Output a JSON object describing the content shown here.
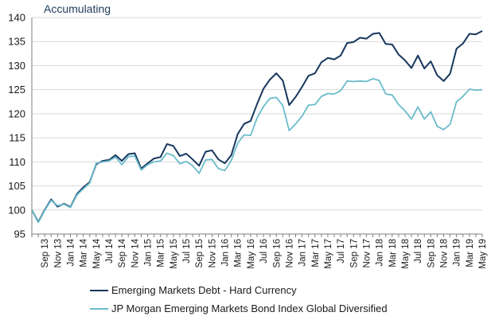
{
  "chart_data": {
    "type": "line",
    "title": "Accumulating",
    "xlabel": "",
    "ylabel": "",
    "ylim": [
      95,
      140
    ],
    "yticks": [
      95,
      100,
      105,
      110,
      115,
      120,
      125,
      130,
      135,
      140
    ],
    "grid": true,
    "legend_position": "bottom",
    "x": [
      "Jul 13",
      "Aug 13",
      "Sep 13",
      "Oct 13",
      "Nov 13",
      "Dec 13",
      "Jan 14",
      "Feb 14",
      "Mar 14",
      "Apr 14",
      "May 14",
      "Jun 14",
      "Jul 14",
      "Aug 14",
      "Sep 14",
      "Oct 14",
      "Nov 14",
      "Dec 14",
      "Jan 15",
      "Feb 15",
      "Mar 15",
      "Apr 15",
      "May 15",
      "Jun 15",
      "Jul 15",
      "Aug 15",
      "Sep 15",
      "Oct 15",
      "Nov 15",
      "Dec 15",
      "Jan 16",
      "Feb 16",
      "Mar 16",
      "Apr 16",
      "May 16",
      "Jun 16",
      "Jul 16",
      "Aug 16",
      "Sep 16",
      "Oct 16",
      "Nov 16",
      "Dec 16",
      "Jan 17",
      "Feb 17",
      "Mar 17",
      "Apr 17",
      "May 17",
      "Jun 17",
      "Jul 17",
      "Aug 17",
      "Sep 17",
      "Oct 17",
      "Nov 17",
      "Dec 17",
      "Jan 18",
      "Feb 18",
      "Mar 18",
      "Apr 18",
      "May 18",
      "Jun 18",
      "Jul 18",
      "Aug 18",
      "Sep 18",
      "Oct 18",
      "Nov 18",
      "Dec 18",
      "Jan 19",
      "Feb 19",
      "Mar 19",
      "Apr 19",
      "May 19"
    ],
    "x_tick_labels": [
      "Sep 13",
      "Nov 13",
      "Jan 14",
      "Mar 14",
      "May 14",
      "Jul 14",
      "Sep 14",
      "Nov 14",
      "Jan 15",
      "Mar 15",
      "May 15",
      "Jul 15",
      "Sep 15",
      "Nov 15",
      "Jan 16",
      "Mar 16",
      "May 16",
      "Jul 16",
      "Sep 16",
      "Nov 16",
      "Jan 17",
      "Mar 17",
      "May 17",
      "Jul 17",
      "Sep 17",
      "Nov 17",
      "Jan 18",
      "Mar 18",
      "May 18",
      "Jul 18",
      "Sep 18",
      "Nov 18",
      "Jan 19",
      "Mar 19",
      "May 19"
    ],
    "series": [
      {
        "name": "Emerging Markets Debt - Hard Currency",
        "color": "#17375e",
        "values": [
          100.0,
          97.5,
          100.0,
          102.2,
          100.7,
          101.3,
          100.6,
          103.3,
          104.7,
          105.8,
          109.5,
          110.2,
          110.4,
          111.4,
          110.2,
          111.6,
          111.8,
          108.6,
          109.7,
          110.7,
          111.0,
          113.7,
          113.3,
          111.2,
          111.7,
          110.5,
          109.2,
          112.1,
          112.4,
          110.5,
          109.7,
          111.4,
          115.8,
          117.9,
          118.5,
          122.0,
          125.2,
          127.1,
          128.4,
          126.9,
          121.8,
          123.5,
          125.6,
          127.9,
          128.4,
          130.7,
          131.6,
          131.3,
          132.1,
          134.7,
          134.9,
          135.8,
          135.6,
          136.6,
          136.8,
          134.5,
          134.4,
          132.3,
          131.1,
          129.5,
          132.1,
          129.4,
          130.9,
          128.0,
          126.8,
          128.3,
          133.5,
          134.6,
          136.6,
          136.5,
          137.2
        ]
      },
      {
        "name": "JP Morgan Emerging Markets Bond Index Global Diversified",
        "color": "#6bbccb",
        "values": [
          100.0,
          97.4,
          99.9,
          102.0,
          100.9,
          101.2,
          100.5,
          103.1,
          104.4,
          105.6,
          109.7,
          110.0,
          110.2,
          111.0,
          109.4,
          111.1,
          111.2,
          108.3,
          109.4,
          110.0,
          110.2,
          111.8,
          111.3,
          109.6,
          110.1,
          109.2,
          107.6,
          110.4,
          110.5,
          108.6,
          108.2,
          110.3,
          113.9,
          115.6,
          115.5,
          119.1,
          121.5,
          123.2,
          123.4,
          121.7,
          116.5,
          117.9,
          119.5,
          121.8,
          121.9,
          123.6,
          124.2,
          124.1,
          124.8,
          126.8,
          126.7,
          126.8,
          126.7,
          127.3,
          126.9,
          124.1,
          123.9,
          121.9,
          120.6,
          118.9,
          121.4,
          118.9,
          120.4,
          117.4,
          116.7,
          117.8,
          122.5,
          123.6,
          125.1,
          124.9,
          125.0
        ]
      }
    ]
  }
}
